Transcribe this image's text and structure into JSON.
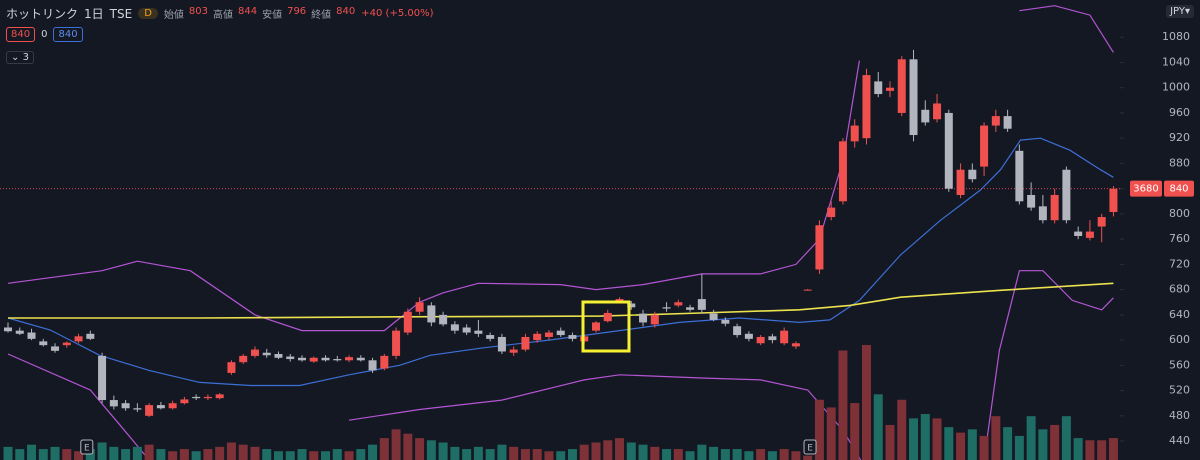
{
  "header": {
    "symbol": "ホットリンク",
    "interval": "1日",
    "exchange": "TSE",
    "badge": "D",
    "ohlc": [
      {
        "label": "始値",
        "value": "803"
      },
      {
        "label": "高値",
        "value": "844"
      },
      {
        "label": "安値",
        "value": "796"
      },
      {
        "label": "終値",
        "value": "840"
      }
    ],
    "change": "+40 (+5.00%)",
    "legend_row": [
      "840",
      "0",
      "840"
    ],
    "indicators_toggle": "3",
    "currency": "JPY"
  },
  "chart_data": {
    "type": "candlestick",
    "ylim": [
      410,
      1139
    ],
    "yticks": [
      440,
      480,
      520,
      560,
      600,
      640,
      680,
      720,
      760,
      800,
      840,
      880,
      920,
      960,
      1000,
      1040,
      1080
    ],
    "grid": false,
    "up_color": "#f0514f",
    "down_color": "#b2b5be",
    "volume_up_color": "#7e3136",
    "volume_down_color": "#1e6e66",
    "open": [
      620,
      615,
      612,
      598,
      590,
      592,
      598,
      610,
      575,
      505,
      500,
      492,
      480,
      497,
      492,
      500,
      510,
      508,
      508,
      548,
      565,
      575,
      580,
      578,
      574,
      572,
      566,
      572,
      570,
      568,
      572,
      568,
      555,
      575,
      612,
      645,
      655,
      640,
      625,
      620,
      615,
      608,
      605,
      580,
      585,
      600,
      605,
      615,
      608,
      598,
      615,
      630,
      660,
      658,
      642,
      625,
      652,
      655,
      652,
      665,
      642,
      632,
      622,
      610,
      595,
      606,
      595,
      590,
      680,
      712,
      795,
      820,
      915,
      920,
      1010,
      995,
      960,
      1045,
      965,
      950,
      960,
      830,
      870,
      875,
      940,
      955,
      900,
      830,
      812,
      790,
      870,
      772,
      762,
      780,
      803
    ],
    "high": [
      628,
      620,
      618,
      602,
      595,
      598,
      610,
      615,
      580,
      512,
      505,
      500,
      500,
      502,
      504,
      510,
      514,
      514,
      516,
      568,
      578,
      590,
      586,
      582,
      578,
      576,
      574,
      576,
      575,
      576,
      576,
      572,
      578,
      620,
      650,
      668,
      660,
      645,
      630,
      625,
      632,
      612,
      610,
      590,
      610,
      614,
      616,
      620,
      612,
      610,
      630,
      648,
      668,
      662,
      648,
      645,
      660,
      664,
      656,
      705,
      648,
      636,
      626,
      614,
      608,
      610,
      620,
      598,
      681,
      790,
      820,
      920,
      950,
      1030,
      1025,
      1010,
      1050,
      1060,
      980,
      990,
      965,
      880,
      880,
      945,
      965,
      965,
      910,
      850,
      830,
      840,
      875,
      780,
      790,
      800,
      844
    ],
    "low": [
      612,
      608,
      600,
      590,
      580,
      588,
      595,
      600,
      500,
      490,
      488,
      486,
      478,
      490,
      490,
      498,
      505,
      505,
      506,
      545,
      562,
      572,
      572,
      570,
      566,
      566,
      564,
      566,
      566,
      565,
      566,
      548,
      552,
      570,
      608,
      640,
      622,
      622,
      610,
      608,
      605,
      598,
      578,
      575,
      582,
      596,
      600,
      605,
      598,
      595,
      612,
      628,
      658,
      648,
      622,
      620,
      645,
      652,
      645,
      642,
      630,
      622,
      604,
      598,
      592,
      595,
      592,
      586,
      679,
      705,
      790,
      815,
      905,
      910,
      985,
      985,
      955,
      915,
      940,
      945,
      835,
      825,
      850,
      860,
      930,
      930,
      815,
      805,
      785,
      785,
      785,
      760,
      758,
      755,
      796
    ],
    "close": [
      614,
      610,
      602,
      592,
      583,
      596,
      606,
      602,
      505,
      495,
      492,
      490,
      497,
      492,
      500,
      506,
      508,
      510,
      514,
      565,
      575,
      585,
      576,
      572,
      570,
      568,
      572,
      568,
      568,
      573,
      568,
      552,
      575,
      615,
      645,
      660,
      628,
      625,
      615,
      612,
      610,
      602,
      582,
      585,
      605,
      610,
      612,
      608,
      602,
      606,
      628,
      643,
      665,
      652,
      628,
      640,
      650,
      660,
      648,
      648,
      632,
      626,
      608,
      602,
      605,
      600,
      615,
      595,
      680,
      782,
      810,
      915,
      940,
      1020,
      990,
      1000,
      1045,
      925,
      945,
      975,
      840,
      870,
      855,
      940,
      955,
      935,
      820,
      810,
      790,
      830,
      790,
      765,
      772,
      795,
      840
    ],
    "volume": [
      12,
      10,
      14,
      10,
      12,
      10,
      8,
      10,
      16,
      12,
      10,
      12,
      14,
      10,
      8,
      10,
      8,
      10,
      12,
      16,
      14,
      12,
      10,
      8,
      8,
      10,
      8,
      8,
      10,
      8,
      10,
      14,
      20,
      28,
      24,
      20,
      18,
      16,
      12,
      10,
      12,
      10,
      14,
      12,
      10,
      10,
      8,
      8,
      10,
      14,
      16,
      18,
      20,
      16,
      14,
      12,
      10,
      10,
      8,
      14,
      12,
      10,
      10,
      8,
      10,
      8,
      10,
      8,
      4,
      55,
      48,
      100,
      52,
      105,
      60,
      32,
      55,
      38,
      42,
      38,
      30,
      25,
      28,
      22,
      40,
      30,
      22,
      40,
      28,
      32,
      40,
      20,
      18,
      18,
      20
    ],
    "lines": [
      {
        "name": "bb-upper",
        "color": "#b455d4",
        "x": [
          0,
          8,
          11,
          15.5,
          21,
          25,
          32,
          35,
          37,
          40,
          47,
          50,
          54,
          59,
          64,
          67,
          69,
          71,
          72.4,
          null,
          86,
          89,
          92,
          94
        ],
        "values": [
          690,
          710,
          725,
          710,
          640,
          615,
          615,
          660,
          675,
          690,
          688,
          680,
          688,
          705,
          705,
          720,
          760,
          885,
          1043,
          null,
          1122,
          1130,
          1115,
          1056
        ]
      },
      {
        "name": "bb-lower",
        "color": "#b455d4",
        "x": [
          0,
          7,
          9.5,
          12,
          null,
          29,
          35,
          42,
          49,
          52,
          59,
          64,
          68,
          71,
          72.5,
          null,
          83,
          84.3,
          86,
          88,
          90.5,
          93,
          94
        ],
        "values": [
          578,
          521,
          466,
          410,
          null,
          473,
          490,
          505,
          537,
          545,
          540,
          537,
          521,
          457,
          410,
          null,
          410,
          584,
          710,
          710,
          663,
          648,
          667
        ]
      },
      {
        "name": "bb-middle",
        "color": "#3d6fd6",
        "x": [
          0,
          3.6,
          7.8,
          12,
          16.3,
          20.6,
          24.8,
          29,
          33.3,
          35.9,
          40.1,
          46,
          52,
          57.1,
          62.2,
          67.3,
          69.9,
          72.4,
          75.9,
          79.3,
          82.7,
          84.4,
          86.1,
          87.8,
          90.3,
          92.9,
          94
        ],
        "values": [
          635,
          616,
          576,
          552,
          533,
          528,
          528,
          545,
          560,
          576,
          587,
          600,
          615,
          628,
          635,
          628,
          632,
          663,
          735,
          790,
          838,
          870,
          917,
          920,
          901,
          870,
          858
        ]
      },
      {
        "name": "ma",
        "color": "#ece24e",
        "x": [
          0,
          16.3,
          33.3,
          50.4,
          58.9,
          67.3,
          71.6,
          75.9,
          84.4,
          94
        ],
        "values": [
          635,
          635,
          637,
          638,
          643,
          648,
          655,
          668,
          679,
          690
        ]
      }
    ],
    "last_price": 840,
    "last_price_tag": "3680",
    "last_price_label": "840",
    "earnings_markers": [
      {
        "label": "E",
        "index": 6.7
      },
      {
        "label": "E",
        "index": 68.2
      }
    ]
  }
}
